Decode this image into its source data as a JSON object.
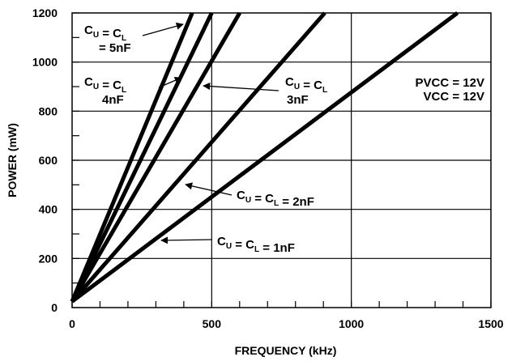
{
  "chart_data": {
    "type": "line",
    "title": "",
    "xlabel": "FREQUENCY (kHz)",
    "ylabel": "POWER (mW)",
    "xlim": [
      0,
      1500
    ],
    "ylim": [
      0,
      1200
    ],
    "x_ticks": [
      "0",
      "500",
      "1000",
      "1500"
    ],
    "y_ticks": [
      "0",
      "200",
      "400",
      "600",
      "800",
      "1000",
      "1200"
    ],
    "grid": true,
    "series": [
      {
        "name": "CU = CL = 5nF",
        "x": [
          0,
          430
        ],
        "y": [
          25,
          1200
        ]
      },
      {
        "name": "CU = CL = 4nF",
        "x": [
          0,
          500
        ],
        "y": [
          25,
          1200
        ]
      },
      {
        "name": "CU = CL = 3nF",
        "x": [
          0,
          600
        ],
        "y": [
          25,
          1200
        ]
      },
      {
        "name": "CU = CL = 2nF",
        "x": [
          0,
          905
        ],
        "y": [
          25,
          1200
        ]
      },
      {
        "name": "CU = CL = 1nF",
        "x": [
          0,
          1380
        ],
        "y": [
          25,
          1200
        ]
      }
    ],
    "annotations": [
      {
        "lines": [
          "C|U| = C|L|",
          "= 5nF"
        ]
      },
      {
        "lines": [
          "C|U| = C|L|",
          "4nF"
        ]
      },
      {
        "lines": [
          "C|U| = C|L|",
          "3nF"
        ]
      },
      {
        "lines": [
          "C|U| = C|L| = 2nF"
        ]
      },
      {
        "lines": [
          "C|U| = C|L| = 1nF"
        ]
      },
      {
        "lines": [
          "PVCC = 12V",
          "VCC = 12V"
        ]
      }
    ]
  }
}
